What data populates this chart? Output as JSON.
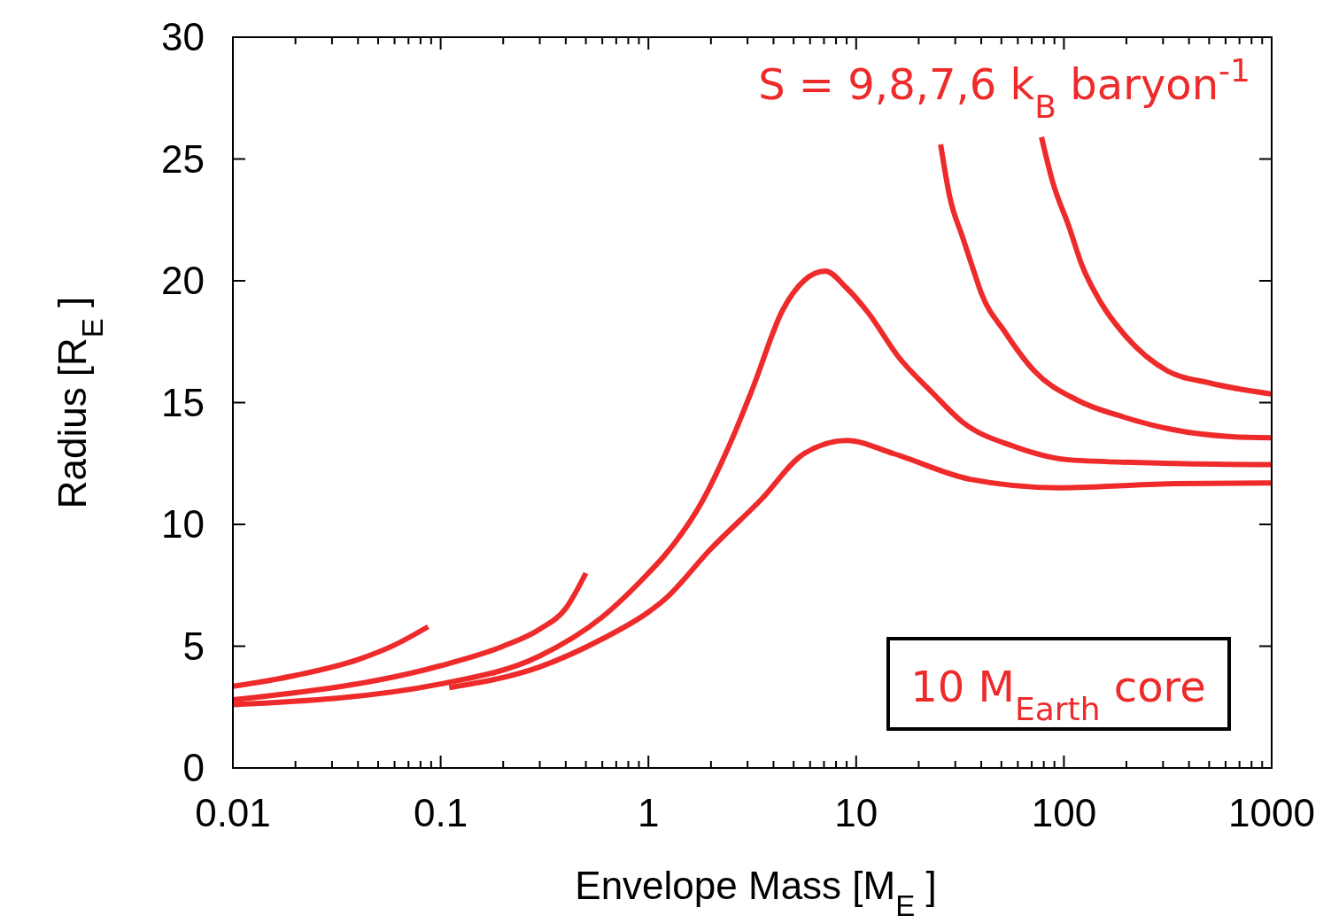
{
  "chart_data": {
    "type": "line",
    "xlabel": "Envelope Mass [M$_{E}$ ]",
    "ylabel": "Radius [R$_{E}$ ]",
    "log": "x",
    "xlim": [
      0.01,
      1000
    ],
    "ylim": [
      0,
      30
    ],
    "xticks": [
      0.01,
      {
        "value": 0.02,
        "label": null
      },
      {
        "value": 0.03,
        "label": null
      },
      {
        "value": 0.04,
        "label": null
      },
      {
        "value": 0.05,
        "label": null
      },
      {
        "value": 0.06,
        "label": null
      },
      {
        "value": 0.07,
        "label": null
      },
      {
        "value": 0.08,
        "label": null
      },
      {
        "value": 0.09,
        "label": null
      },
      0.1,
      {
        "value": 0.2,
        "label": null
      },
      {
        "value": 0.3,
        "label": null
      },
      {
        "value": 0.4,
        "label": null
      },
      {
        "value": 0.5,
        "label": null
      },
      {
        "value": 0.6,
        "label": null
      },
      {
        "value": 0.7,
        "label": null
      },
      {
        "value": 0.8,
        "label": null
      },
      {
        "value": 0.9,
        "label": null
      },
      1,
      {
        "value": 2,
        "label": null
      },
      {
        "value": 3,
        "label": null
      },
      {
        "value": 4,
        "label": null
      },
      {
        "value": 5,
        "label": null
      },
      {
        "value": 6,
        "label": null
      },
      {
        "value": 7,
        "label": null
      },
      {
        "value": 8,
        "label": null
      },
      {
        "value": 9,
        "label": null
      },
      10,
      {
        "value": 20,
        "label": null
      },
      {
        "value": 30,
        "label": null
      },
      {
        "value": 40,
        "label": null
      },
      {
        "value": 50,
        "label": null
      },
      {
        "value": 60,
        "label": null
      },
      {
        "value": 70,
        "label": null
      },
      {
        "value": 80,
        "label": null
      },
      {
        "value": 90,
        "label": null
      },
      100,
      {
        "value": 200,
        "label": null
      },
      {
        "value": 300,
        "label": null
      },
      {
        "value": 400,
        "label": null
      },
      {
        "value": 500,
        "label": null
      },
      {
        "value": 600,
        "label": null
      },
      {
        "value": 700,
        "label": null
      },
      {
        "value": 800,
        "label": null
      },
      {
        "value": 900,
        "label": null
      },
      1000
    ],
    "yticks": [
      0,
      5,
      10,
      15,
      20,
      25,
      30
    ],
    "grid": false,
    "line_style": "solid",
    "marker": "none",
    "series": [
      {
        "color": "#ee2a2a",
        "x": [
          0.01,
          0.02,
          0.04,
          0.06,
          0.087
        ],
        "values": [
          3.35,
          3.8,
          4.45,
          5.05,
          5.8
        ]
      },
      {
        "color": "#ee2a2a",
        "x": [
          0.01,
          0.1,
          0.2,
          0.3,
          0.4,
          0.5
        ],
        "values": [
          2.8,
          4.2,
          5.0,
          5.7,
          6.55,
          8.0
        ]
      },
      {
        "color": "#ee2a2a",
        "x": [
          0.01,
          0.1,
          0.3,
          0.6,
          1.0,
          1.19,
          1.83,
          2.51,
          3.18,
          4.43,
          5.6,
          7.1,
          9.0,
          11.4,
          15.9,
          23.3,
          32.5,
          57.6,
          106,
          347,
          1000
        ],
        "values": [
          2.6,
          3.45,
          4.6,
          6.2,
          8.0,
          8.7,
          11.0,
          13.45,
          15.6,
          18.8,
          20.0,
          20.4,
          19.7,
          18.7,
          16.9,
          15.4,
          14.2,
          13.2,
          12.65,
          12.5,
          12.45
        ]
      },
      {
        "color": "#ee2a2a",
        "x": [
          0.11,
          0.3,
          0.6,
          1.0,
          1.19,
          2.0,
          3.47,
          5.6,
          9.0,
          15.2,
          35.5,
          95,
          347,
          1000
        ],
        "values": [
          3.3,
          4.15,
          5.3,
          6.4,
          6.9,
          9.0,
          11.0,
          12.9,
          13.45,
          12.9,
          11.85,
          11.5,
          11.67,
          11.7
        ]
      },
      {
        "color": "#ee2a2a",
        "x": [
          25.5,
          28.2,
          32.5,
          36.5,
          40,
          52,
          72,
          116,
          195,
          330,
          640,
          1000
        ],
        "values": [
          25.6,
          23.45,
          21.8,
          20.5,
          19.5,
          17.9,
          16.3,
          15.1,
          14.4,
          13.9,
          13.6,
          13.55
        ]
      },
      {
        "color": "#ee2a2a",
        "x": [
          78,
          88,
          106,
          122,
          152,
          195,
          315,
          506,
          1000
        ],
        "values": [
          25.9,
          24.1,
          22.2,
          20.65,
          19.05,
          17.8,
          16.3,
          15.8,
          15.35
        ]
      }
    ],
    "annotations": [
      "S = 9,8,7,6 k$_{B}$ baryon$^{-1}$",
      "10 M$_{Earth}$ core"
    ]
  }
}
